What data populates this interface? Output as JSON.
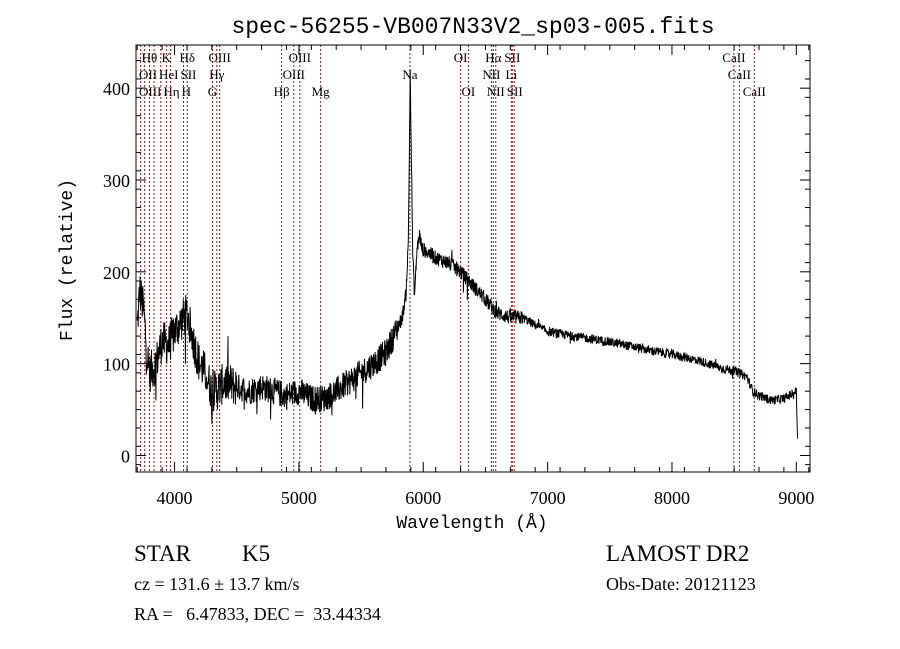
{
  "chart_data": {
    "type": "line",
    "title": "spec-56255-VB007N33V2_sp03-005.fits",
    "xlabel": "Wavelength (Å)",
    "ylabel": "Flux (relative)",
    "xlim": [
      3690,
      9110
    ],
    "ylim": [
      -18,
      447
    ],
    "xticks": [
      4000,
      5000,
      6000,
      7000,
      8000,
      9000
    ],
    "yticks": [
      0,
      100,
      200,
      300,
      400
    ],
    "grid": false,
    "series": [
      {
        "name": "flux",
        "wavelength": [
          3700,
          3720,
          3750,
          3780,
          3800,
          3850,
          3900,
          3950,
          4000,
          4050,
          4100,
          4150,
          4200,
          4250,
          4300,
          4350,
          4400,
          4500,
          4600,
          4700,
          4800,
          4900,
          5000,
          5100,
          5200,
          5300,
          5400,
          5500,
          5600,
          5700,
          5780,
          5830,
          5860,
          5880,
          5895,
          5905,
          5915,
          5930,
          5950,
          5970,
          5990,
          6050,
          6100,
          6200,
          6300,
          6400,
          6500,
          6560,
          6600,
          6700,
          6800,
          6900,
          7000,
          7200,
          7400,
          7600,
          7800,
          8000,
          8200,
          8400,
          8500,
          8600,
          8650,
          8700,
          8800,
          8900,
          8980,
          9000,
          9010
        ],
        "flux": [
          140,
          180,
          160,
          110,
          90,
          100,
          125,
          120,
          135,
          145,
          155,
          125,
          100,
          90,
          70,
          72,
          80,
          75,
          70,
          75,
          70,
          65,
          70,
          62,
          62,
          70,
          80,
          90,
          100,
          112,
          135,
          150,
          175,
          230,
          420,
          320,
          220,
          175,
          225,
          240,
          225,
          220,
          215,
          210,
          200,
          185,
          170,
          160,
          155,
          150,
          150,
          142,
          135,
          130,
          126,
          121,
          115,
          110,
          104,
          95,
          92,
          86,
          70,
          65,
          60,
          62,
          68,
          70,
          18
        ]
      }
    ],
    "lines": [
      {
        "label": "Hθ",
        "wavelength": 3798,
        "row": 1
      },
      {
        "label": "K",
        "wavelength": 3934,
        "row": 1
      },
      {
        "label": "Hδ",
        "wavelength": 4102,
        "row": 1
      },
      {
        "label": "OIII",
        "wavelength": 4363,
        "row": 1
      },
      {
        "label": "OIII",
        "wavelength": 5007,
        "row": 1
      },
      {
        "label": "OI",
        "wavelength": 6300,
        "row": 1
      },
      {
        "label": "Hα",
        "wavelength": 6563,
        "row": 1
      },
      {
        "label": "SII",
        "wavelength": 6716,
        "row": 1
      },
      {
        "label": "CaII",
        "wavelength": 8498,
        "row": 1
      },
      {
        "label": "OII",
        "wavelength": 3727,
        "row": 2
      },
      {
        "label": "HeI",
        "wavelength": 3889,
        "row": 2
      },
      {
        "label": "SII",
        "wavelength": 4072,
        "row": 2
      },
      {
        "label": "Hγ",
        "wavelength": 4340,
        "row": 2
      },
      {
        "label": "OIII",
        "wavelength": 4959,
        "row": 2
      },
      {
        "label": "Na",
        "wavelength": 5893,
        "row": 2
      },
      {
        "label": "NII",
        "wavelength": 6548,
        "row": 2
      },
      {
        "label": "Li",
        "wavelength": 6708,
        "row": 2
      },
      {
        "label": "CaII",
        "wavelength": 8542,
        "row": 2
      },
      {
        "label": "OIII",
        "wavelength": 3760,
        "row": 3
      },
      {
        "label": "Hη",
        "wavelength": 3835,
        "row": 3
      },
      {
        "label": "H",
        "wavelength": 3968,
        "row": 3
      },
      {
        "label": "G",
        "wavelength": 4305,
        "row": 3
      },
      {
        "label": "Hβ",
        "wavelength": 4861,
        "row": 3
      },
      {
        "label": "Mg",
        "wavelength": 5175,
        "row": 3
      },
      {
        "label": "OI",
        "wavelength": 6363,
        "row": 3
      },
      {
        "label": "NII",
        "wavelength": 6583,
        "row": 3
      },
      {
        "label": "SII",
        "wavelength": 6731,
        "row": 3
      },
      {
        "label": "CaII",
        "wavelength": 8662,
        "row": 3
      }
    ],
    "line_color": "#8b1a1a"
  },
  "info": {
    "object_class": "STAR",
    "subclass": "K5",
    "survey": "LAMOST DR2",
    "cz": "cz = 131.6 ± 13.7 km/s",
    "obs_date": "Obs-Date: 20121123",
    "coords": "RA =   6.47833, DEC =  33.44334"
  }
}
